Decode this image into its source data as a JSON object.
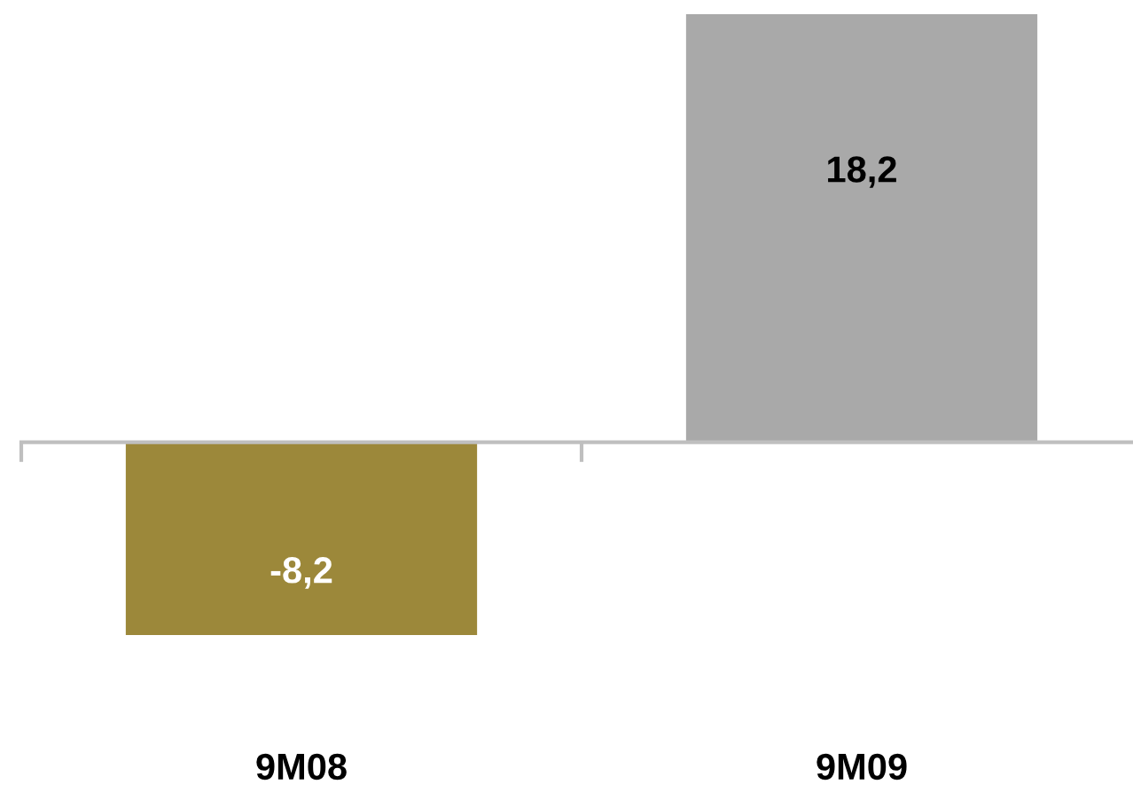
{
  "chart_data": {
    "type": "bar",
    "categories": [
      "9M08",
      "9M09"
    ],
    "values": [
      -8.2,
      18.2
    ],
    "colors": [
      "#9c883a",
      "#a9a9a9"
    ],
    "value_labels": [
      "-8,2",
      "18,2"
    ],
    "grid": false,
    "legend": false
  }
}
